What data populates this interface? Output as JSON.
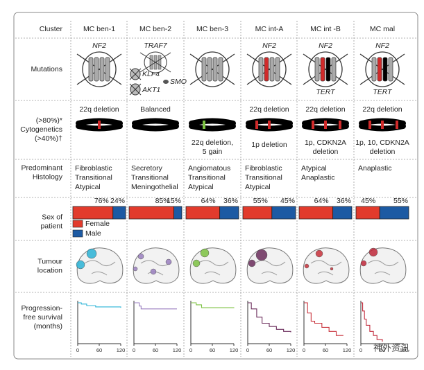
{
  "row_labels": {
    "cluster": "Cluster",
    "mutations": "Mutations",
    "cytogenetics": [
      "(>80%)*",
      "Cytogenetics",
      "(>40%)†"
    ],
    "histology": [
      "Predominant",
      "Histology"
    ],
    "sex": [
      "Sex of",
      "patient"
    ],
    "location": [
      "Tumour",
      "location"
    ],
    "survival": [
      "Progression-",
      "free survival",
      "(months)"
    ]
  },
  "sex_legend": [
    "Female",
    "Male"
  ],
  "survival_axis": {
    "xlim": [
      0,
      120
    ],
    "xticks": [
      0,
      60,
      120
    ],
    "ylim": [
      0,
      1
    ]
  },
  "clusters": [
    {
      "name": "MC ben-1",
      "mutations_top": [
        "NF2"
      ],
      "cyto_top": [
        "22q deletion"
      ],
      "histology": [
        "Fibroblastic",
        "Transitional",
        "Atypical"
      ],
      "female": 76,
      "female_label": "76%",
      "male": 24,
      "male_label": "24%",
      "color": "#2ab3d6",
      "pfs_x": [
        0,
        10,
        25,
        50,
        120
      ],
      "pfs_y": [
        1,
        0.97,
        0.93,
        0.9,
        0.88
      ]
    },
    {
      "name": "MC ben-2",
      "mutations_top": [
        "TRAF7"
      ],
      "extra_genes": [
        "KLF4",
        "SMO",
        "AKT1"
      ],
      "cyto_top": [
        "Balanced"
      ],
      "histology": [
        "Secretory",
        "Transitional",
        "Meningothelial"
      ],
      "female": 85,
      "female_label": "85%",
      "male": 15,
      "male_label": "15%",
      "color": "#9a7fc0",
      "pfs_x": [
        0,
        15,
        20,
        120
      ],
      "pfs_y": [
        1,
        0.92,
        0.85,
        0.85
      ]
    },
    {
      "name": "MC ben-3",
      "cyto_bottom": [
        "22q deletion,",
        "5 gain"
      ],
      "histology": [
        "Angiomatous",
        "Transitional",
        "Atypical"
      ],
      "female": 64,
      "female_label": "64%",
      "male": 36,
      "male_label": "36%",
      "color": "#7cc242",
      "pfs_x": [
        0,
        15,
        30,
        120
      ],
      "pfs_y": [
        1,
        0.95,
        0.88,
        0.87
      ]
    },
    {
      "name": "MC int-A",
      "mutations_top": [
        "NF2"
      ],
      "cyto_top": [
        "22q deletion"
      ],
      "cyto_bottom": [
        "1p deletion"
      ],
      "histology": [
        "Fibroblastic",
        "Transitional",
        "Atypical"
      ],
      "female": 55,
      "female_label": "55%",
      "male": 45,
      "male_label": "45%",
      "color": "#6b2d5c",
      "pfs_x": [
        0,
        10,
        25,
        40,
        60,
        80,
        100,
        120
      ],
      "pfs_y": [
        1,
        0.85,
        0.65,
        0.5,
        0.42,
        0.35,
        0.3,
        0.28
      ]
    },
    {
      "name": "MC int -B",
      "mutations_top": [
        "NF2"
      ],
      "mutations_bottom": [
        "TERT"
      ],
      "cyto_top": [
        "22q deletion"
      ],
      "cyto_bottom": [
        "1p, CDKN2A",
        "deletion"
      ],
      "histology": [
        "Atypical",
        "Anaplastic"
      ],
      "female": 64,
      "female_label": "64%",
      "male": 36,
      "male_label": "36%",
      "color": "#c8303a",
      "pfs_x": [
        0,
        10,
        20,
        30,
        50,
        70,
        90,
        110
      ],
      "pfs_y": [
        1,
        0.75,
        0.55,
        0.5,
        0.4,
        0.3,
        0.2,
        0.2
      ]
    },
    {
      "name": "MC mal",
      "mutations_top": [
        "NF2"
      ],
      "mutations_bottom": [
        "TERT"
      ],
      "cyto_top": [
        "22q deletion"
      ],
      "cyto_bottom": [
        "1p, 10, CDKN2A",
        "deletion"
      ],
      "histology": [
        "Anaplastic"
      ],
      "female": 45,
      "female_label": "45%",
      "male": 55,
      "male_label": "55%",
      "color": "#c0283a",
      "pfs_x": [
        0,
        5,
        10,
        15,
        25,
        35,
        45,
        60
      ],
      "pfs_y": [
        1,
        0.8,
        0.6,
        0.45,
        0.3,
        0.2,
        0.1,
        0.05
      ]
    }
  ],
  "watermark": "神外资讯"
}
